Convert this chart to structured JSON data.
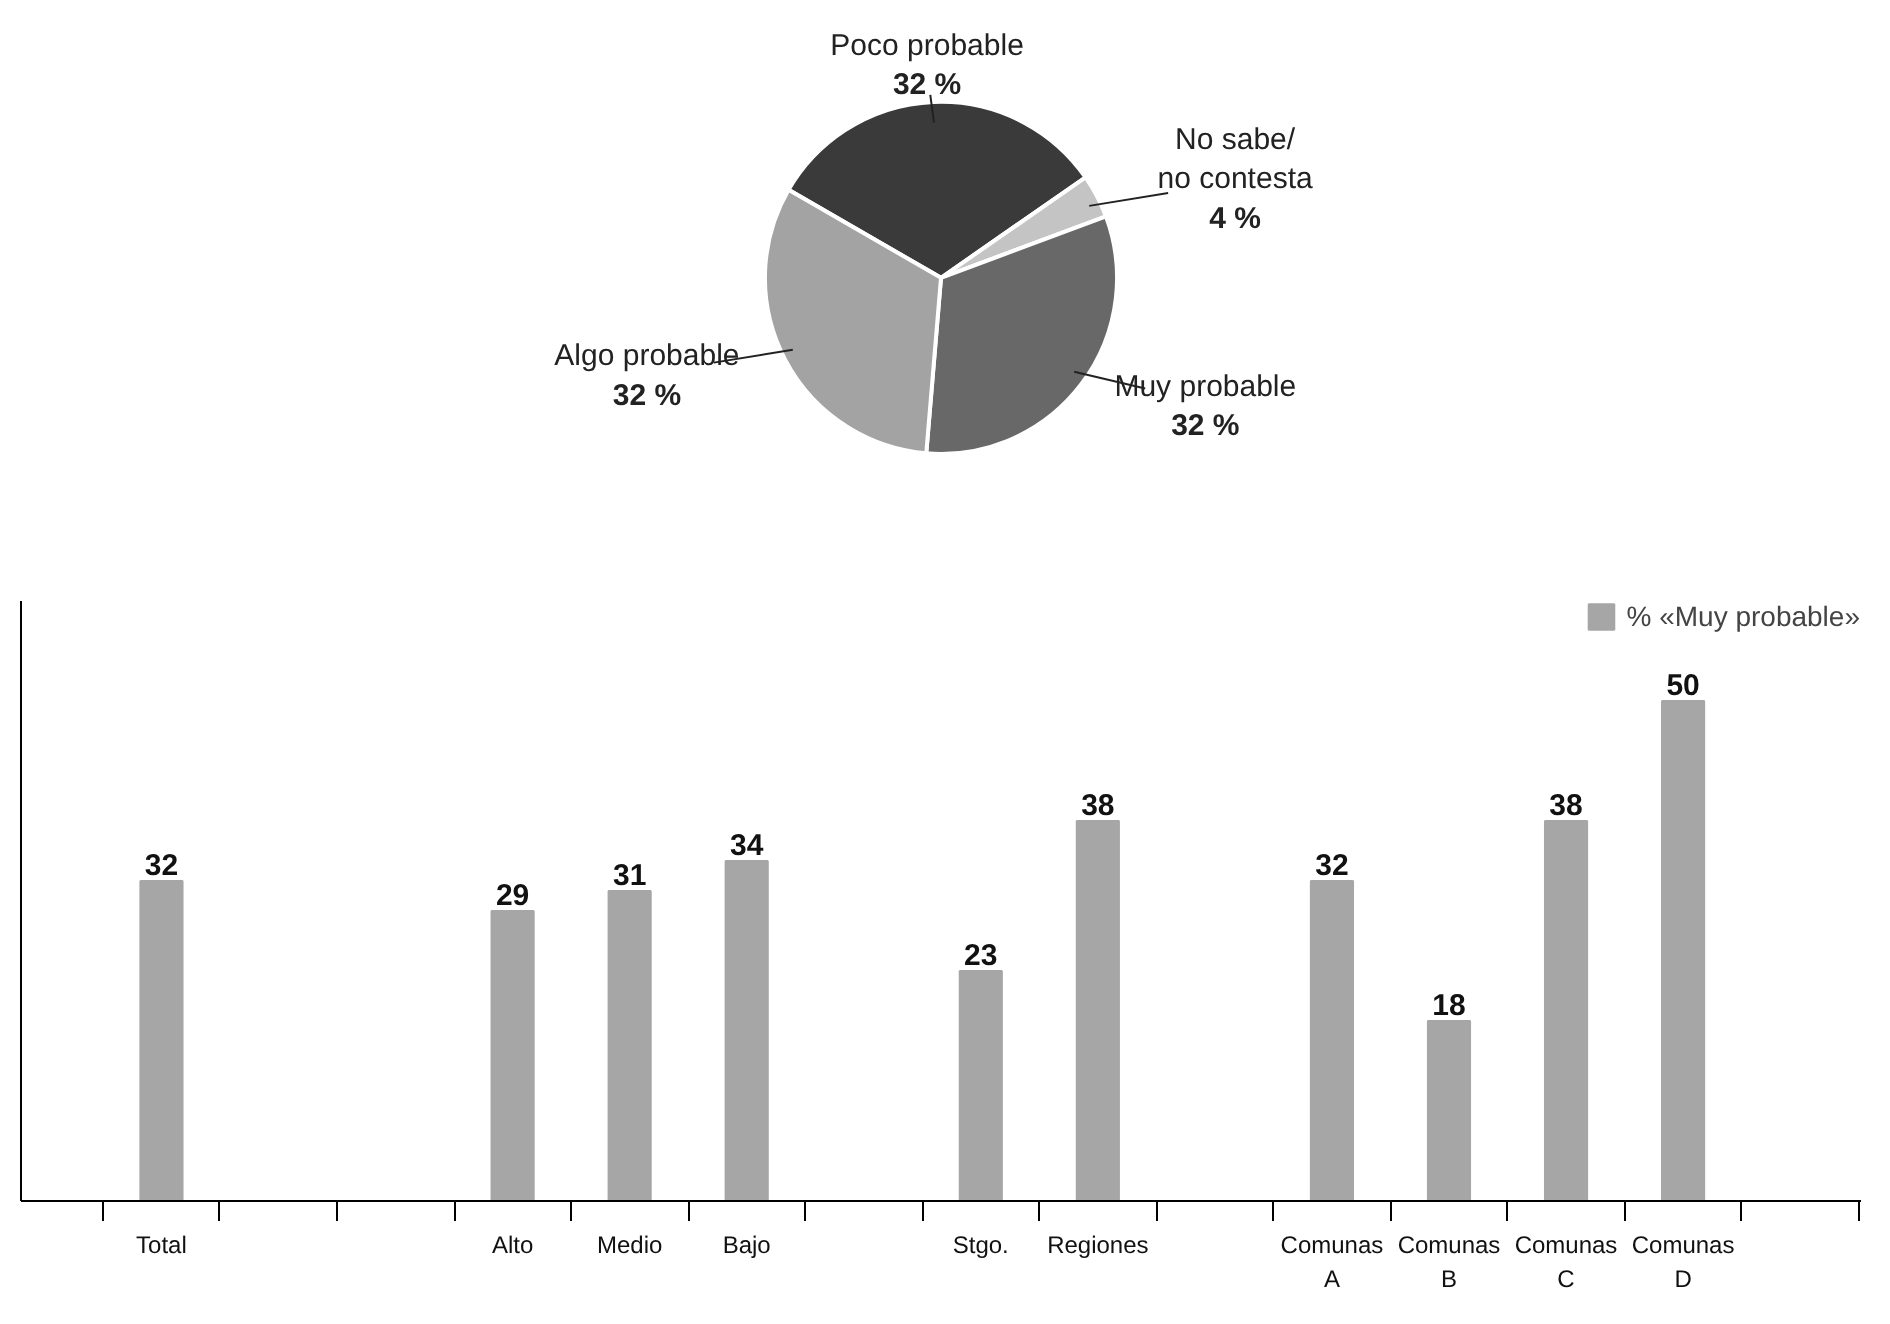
{
  "chart_data": [
    {
      "type": "pie",
      "categories": [
        "Poco probable",
        "No sabe/\nno contesta",
        "Muy probable",
        "Algo probable"
      ],
      "values": [
        32,
        4,
        32,
        32
      ],
      "colors": [
        "#3a3a3a",
        "#c4c4c4",
        "#686868",
        "#a3a3a3"
      ],
      "value_labels": [
        "32 %",
        "4 %",
        "32 %",
        "32 %"
      ]
    },
    {
      "type": "bar",
      "categories": [
        null,
        "Total",
        null,
        null,
        "Alto",
        "Medio",
        "Bajo",
        null,
        "Stgo.",
        "Regiones",
        null,
        "Comunas\nA",
        "Comunas\nB",
        "Comunas\nC",
        "Comunas\nD",
        null
      ],
      "series": [
        {
          "name": "% «Muy probable»",
          "color": "#a6a6a6",
          "values": [
            null,
            32,
            null,
            null,
            29,
            31,
            34,
            null,
            23,
            38,
            null,
            32,
            18,
            38,
            50,
            null
          ]
        }
      ],
      "ylim": [
        0,
        60
      ],
      "tick_labels": "x",
      "data_labels": true,
      "legend": "top right",
      "grid": false
    }
  ]
}
